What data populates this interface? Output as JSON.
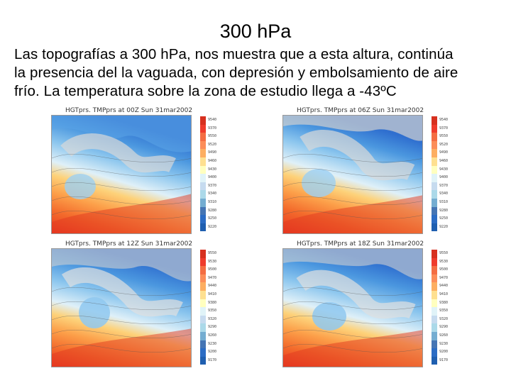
{
  "slide": {
    "title": "300 hPa",
    "text_lines": [
      "Las topografías a 300 hPa, nos muestra que a esta altura, continúa",
      "la presencia del la vaguada, con depresión y embolsamiento de aire",
      "frío. La temperatura sobre la zona de estudio llega a -43ºC"
    ]
  },
  "colors": {
    "colorbar": [
      "#d7301f",
      "#ef3b2c",
      "#f46d43",
      "#fc8d59",
      "#fdae61",
      "#fee090",
      "#ffffbf",
      "#e0f3f8",
      "#c6dbef",
      "#abd9e9",
      "#74add1",
      "#4575b4",
      "#2b6cc4",
      "#1f5fb0"
    ]
  },
  "panels": [
    {
      "caption": "HGTprs. TMPprs at 00Z Sun 31mar2002",
      "colorbar_labels": [
        "9540",
        "9370",
        "9550",
        "9520",
        "9490",
        "9460",
        "9430",
        "9400",
        "9370",
        "9340",
        "9310",
        "9280",
        "9250",
        "9220"
      ]
    },
    {
      "caption": "HGTprs. TMPprs at 06Z Sun 31mar2002",
      "colorbar_labels": [
        "9540",
        "9370",
        "9550",
        "9520",
        "9490",
        "9460",
        "9430",
        "9400",
        "9370",
        "9340",
        "9310",
        "9280",
        "9250",
        "9220"
      ]
    },
    {
      "caption": "HGTprs. TMPprs at 12Z Sun 31mar2002",
      "colorbar_labels": [
        "9550",
        "9530",
        "9500",
        "9470",
        "9440",
        "9410",
        "9380",
        "9350",
        "9320",
        "9290",
        "9260",
        "9230",
        "9200",
        "9170"
      ]
    },
    {
      "caption": "HGTprs. TMPprs at 18Z Sun 31mar2002",
      "colorbar_labels": [
        "9550",
        "9530",
        "9500",
        "9470",
        "9440",
        "9410",
        "9380",
        "9350",
        "9320",
        "9290",
        "9260",
        "9230",
        "9200",
        "9170"
      ]
    }
  ]
}
